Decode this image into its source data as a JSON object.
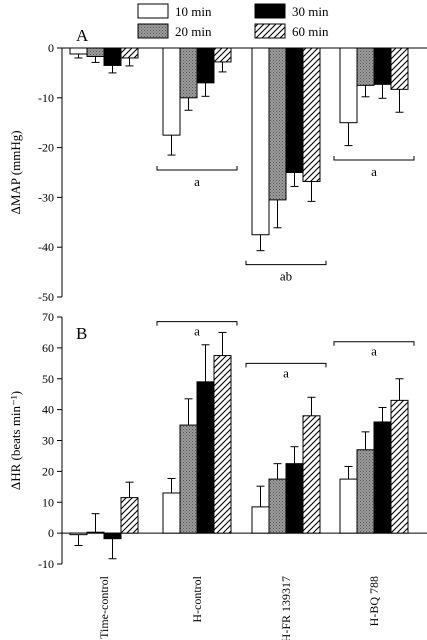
{
  "chart_data": [
    {
      "type": "bar",
      "panel_label": "A",
      "ylabel": "ΔMAP (mmHg)",
      "ylim": [
        -50,
        0
      ],
      "yticks": [
        0,
        -10,
        -20,
        -30,
        -40,
        -50
      ],
      "categories": [
        "Time-control",
        "H-control",
        "H-FR 139317",
        "H-BQ 788"
      ],
      "series": [
        {
          "name": "10 min",
          "values": [
            -1.2,
            -17.5,
            -37.5,
            -15.0
          ],
          "errors": [
            0.8,
            4.0,
            3.2,
            4.6
          ]
        },
        {
          "name": "20 min",
          "values": [
            -1.7,
            -10.0,
            -30.5,
            -7.5
          ],
          "errors": [
            1.2,
            2.5,
            5.6,
            2.3
          ]
        },
        {
          "name": "30 min",
          "values": [
            -3.5,
            -7.0,
            -25.0,
            -7.3
          ],
          "errors": [
            1.5,
            2.7,
            2.8,
            2.8
          ]
        },
        {
          "name": "60 min",
          "values": [
            -2.0,
            -2.8,
            -26.8,
            -8.3
          ],
          "errors": [
            1.6,
            2.0,
            4.0,
            4.6
          ]
        }
      ],
      "annotations": [
        {
          "category_index": 1,
          "text": "a",
          "y": -24.5
        },
        {
          "category_index": 2,
          "text": "ab",
          "y": -43.5
        },
        {
          "category_index": 3,
          "text": "a",
          "y": -22.5
        }
      ]
    },
    {
      "type": "bar",
      "panel_label": "B",
      "ylabel": "ΔHR (beats min⁻¹)",
      "ylim": [
        -10,
        70
      ],
      "yticks": [
        70,
        60,
        50,
        40,
        30,
        20,
        10,
        0,
        -10
      ],
      "categories": [
        "Time-control",
        "H-control",
        "H-FR 139317",
        "H-BQ 788"
      ],
      "series": [
        {
          "name": "10 min",
          "values": [
            -0.5,
            13.0,
            8.5,
            17.5
          ],
          "errors": [
            3.5,
            4.7,
            6.7,
            4.1
          ]
        },
        {
          "name": "20 min",
          "values": [
            0.3,
            35.0,
            17.5,
            27.0
          ],
          "errors": [
            6.0,
            8.5,
            5.0,
            5.8
          ]
        },
        {
          "name": "30 min",
          "values": [
            -1.8,
            49.0,
            22.5,
            36.0
          ],
          "errors": [
            6.5,
            12.0,
            5.5,
            4.7
          ]
        },
        {
          "name": "60 min",
          "values": [
            11.5,
            57.5,
            38.0,
            43.0
          ],
          "errors": [
            5.0,
            7.5,
            6.0,
            7.0
          ]
        }
      ],
      "annotations": [
        {
          "category_index": 1,
          "text": "a",
          "y": 68.5
        },
        {
          "category_index": 2,
          "text": "a",
          "y": 55.0
        },
        {
          "category_index": 3,
          "text": "a",
          "y": 62.0
        }
      ]
    }
  ],
  "legend": [
    {
      "label": "10 min",
      "pattern": "white"
    },
    {
      "label": "30 min",
      "pattern": "black"
    },
    {
      "label": "20 min",
      "pattern": "gray-dotted"
    },
    {
      "label": "60 min",
      "pattern": "diagonal-hatch"
    }
  ]
}
